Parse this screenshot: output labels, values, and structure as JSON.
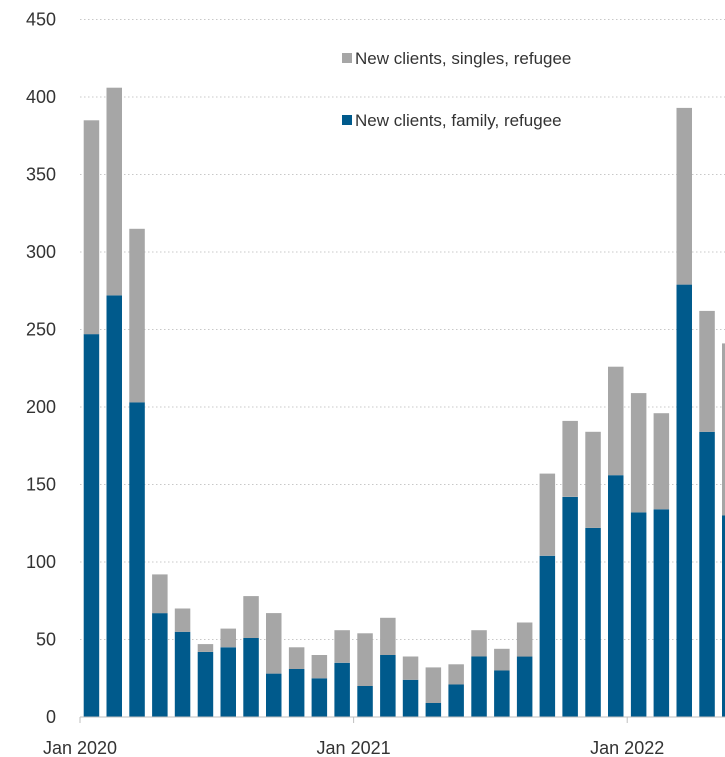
{
  "chart_data": {
    "type": "bar",
    "stacked": true,
    "title": "",
    "xlabel": "",
    "ylabel": "",
    "ylim": [
      0,
      450
    ],
    "yticks": [
      0,
      50,
      100,
      150,
      200,
      250,
      300,
      350,
      400,
      450
    ],
    "grid": "horizontal dotted",
    "legend_position": "top-center",
    "x_tick_labels": [
      {
        "label": "Jan 2020",
        "index": 0
      },
      {
        "label": "Jan 2021",
        "index": 12
      },
      {
        "label": "Jan 2022",
        "index": 24
      }
    ],
    "categories": [
      "Jan 2020",
      "Feb 2020",
      "Mar 2020",
      "Apr 2020",
      "May 2020",
      "Jun 2020",
      "Jul 2020",
      "Aug 2020",
      "Sep 2020",
      "Oct 2020",
      "Nov 2020",
      "Dec 2020",
      "Jan 2021",
      "Feb 2021",
      "Mar 2021",
      "Apr 2021",
      "May 2021",
      "Jun 2021",
      "Jul 2021",
      "Aug 2021",
      "Sep 2021",
      "Oct 2021",
      "Nov 2021",
      "Dec 2021",
      "Jan 2022",
      "Feb 2022",
      "Mar 2022",
      "Apr 2022",
      "May 2022",
      "Jun 2022"
    ],
    "series": [
      {
        "name": "New clients, family, refugee",
        "color": "#005a8c",
        "values": [
          247,
          272,
          203,
          67,
          55,
          42,
          45,
          51,
          28,
          31,
          25,
          35,
          20,
          40,
          24,
          9,
          21,
          39,
          30,
          39,
          104,
          142,
          122,
          156,
          132,
          134,
          279,
          184,
          130,
          0
        ]
      },
      {
        "name": "New clients, singles, refugee",
        "color": "#a6a6a6",
        "values": [
          138,
          134,
          112,
          25,
          15,
          5,
          12,
          27,
          39,
          14,
          15,
          21,
          34,
          24,
          15,
          23,
          13,
          17,
          14,
          22,
          53,
          49,
          62,
          70,
          77,
          62,
          114,
          78,
          111,
          0
        ]
      }
    ],
    "legend_order": [
      "New clients, singles, refugee",
      "New clients, family, refugee"
    ]
  }
}
